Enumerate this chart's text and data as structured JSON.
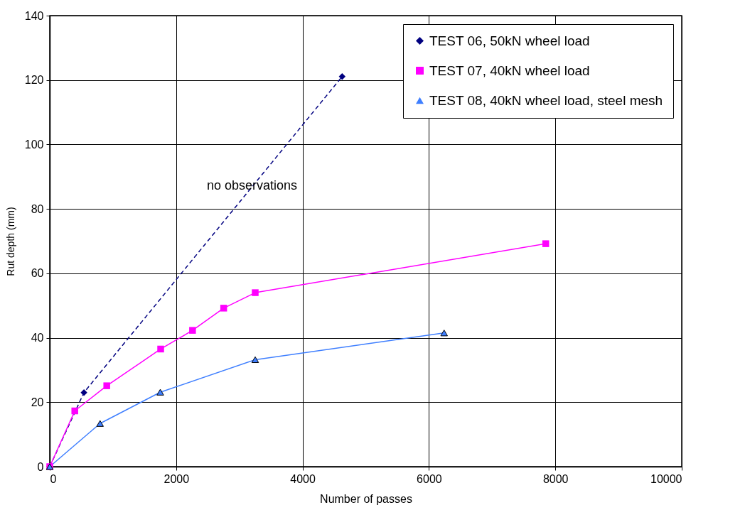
{
  "chart_data": {
    "type": "line",
    "xlabel": "Number of passes",
    "ylabel": "Rut depth (mm)",
    "xlim": [
      0,
      10000
    ],
    "xticks": [
      0,
      2000,
      4000,
      6000,
      8000,
      10000
    ],
    "ylim": [
      0,
      140
    ],
    "yticks": [
      0,
      20,
      40,
      60,
      80,
      100,
      120,
      140
    ],
    "grid": true,
    "legend": "top right",
    "annotations": [
      {
        "text": "no observations",
        "x": 3200,
        "y": 87
      }
    ],
    "series": [
      {
        "name": "TEST 06, 50kN wheel load",
        "color": "#000080",
        "marker": "diamond",
        "line_style": "dashed",
        "x": [
          0,
          541,
          4627
        ],
        "values": [
          0,
          23.0,
          121.1
        ]
      },
      {
        "name": "TEST 07, 40kN wheel load",
        "color": "#ff00ff",
        "marker": "square",
        "line_style": "solid",
        "x": [
          0,
          396,
          902,
          1755,
          2259,
          2752,
          3251,
          7848
        ],
        "values": [
          0,
          17.3,
          25.1,
          36.5,
          42.3,
          49.2,
          54.0,
          69.2
        ]
      },
      {
        "name": "TEST 08, 40kN wheel load, steel mesh",
        "color": "#3f7fff",
        "marker": "triangle",
        "line_style": "solid",
        "x": [
          0,
          796,
          1749,
          3251,
          6240
        ],
        "values": [
          0,
          13.4,
          23.1,
          33.2,
          41.5
        ]
      }
    ]
  }
}
